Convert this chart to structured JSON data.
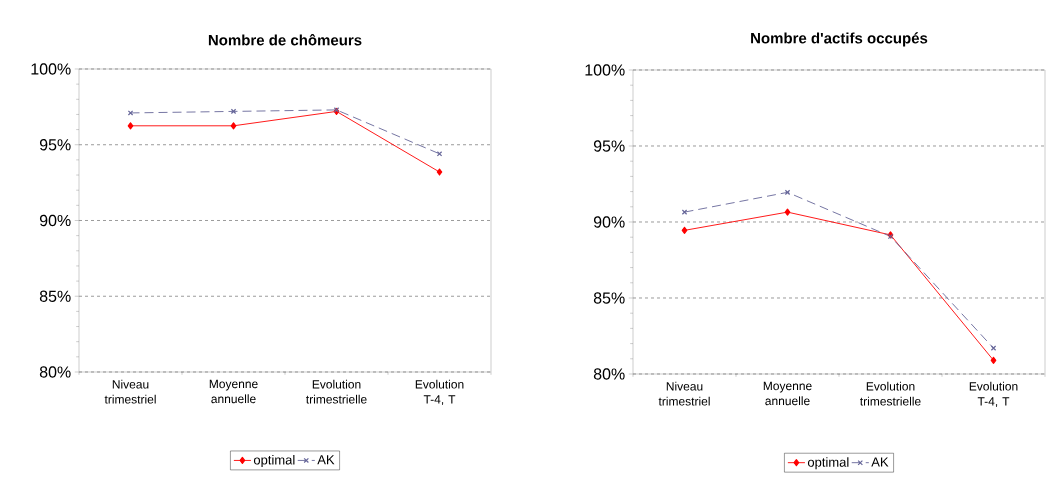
{
  "chart_data": [
    {
      "type": "line",
      "title": "Nombre de chômeurs",
      "categories": [
        "Niveau trimestriel",
        "Moyenne annuelle",
        "Evolution trimestrielle",
        "Evolution T-4, T"
      ],
      "series": [
        {
          "name": "optimal",
          "color": "#ff0000",
          "marker": "diamond",
          "line_style": "solid",
          "values": [
            96.25,
            96.25,
            97.2,
            93.2
          ]
        },
        {
          "name": "AK",
          "color": "#666699",
          "marker": "cross",
          "line_style": "dashed",
          "values": [
            97.1,
            97.2,
            97.3,
            94.4
          ]
        }
      ],
      "ylim": [
        80,
        100
      ],
      "yticks": [
        {
          "value": 80,
          "label": "80%"
        },
        {
          "value": 85,
          "label": "85%"
        },
        {
          "value": 90,
          "label": "90%"
        },
        {
          "value": 95,
          "label": "95%"
        },
        {
          "value": 100,
          "label": "100%"
        }
      ],
      "grid": "y",
      "legend": "bottom"
    },
    {
      "type": "line",
      "title": "Nombre d'actifs occupés",
      "categories": [
        "Niveau trimestriel",
        "Moyenne annuelle",
        "Evolution trimestrielle",
        "Evolution T-4, T"
      ],
      "series": [
        {
          "name": "optimal",
          "color": "#ff0000",
          "marker": "diamond",
          "line_style": "solid",
          "values": [
            89.45,
            90.65,
            89.15,
            80.9
          ]
        },
        {
          "name": "AK",
          "color": "#666699",
          "marker": "cross",
          "line_style": "dashed",
          "values": [
            90.65,
            91.95,
            89.05,
            81.7
          ]
        }
      ],
      "ylim": [
        80,
        100
      ],
      "yticks": [
        {
          "value": 80,
          "label": "80%"
        },
        {
          "value": 85,
          "label": "85%"
        },
        {
          "value": 90,
          "label": "90%"
        },
        {
          "value": 95,
          "label": "95%"
        },
        {
          "value": 100,
          "label": "100%"
        }
      ],
      "grid": "y",
      "legend": "bottom"
    }
  ]
}
